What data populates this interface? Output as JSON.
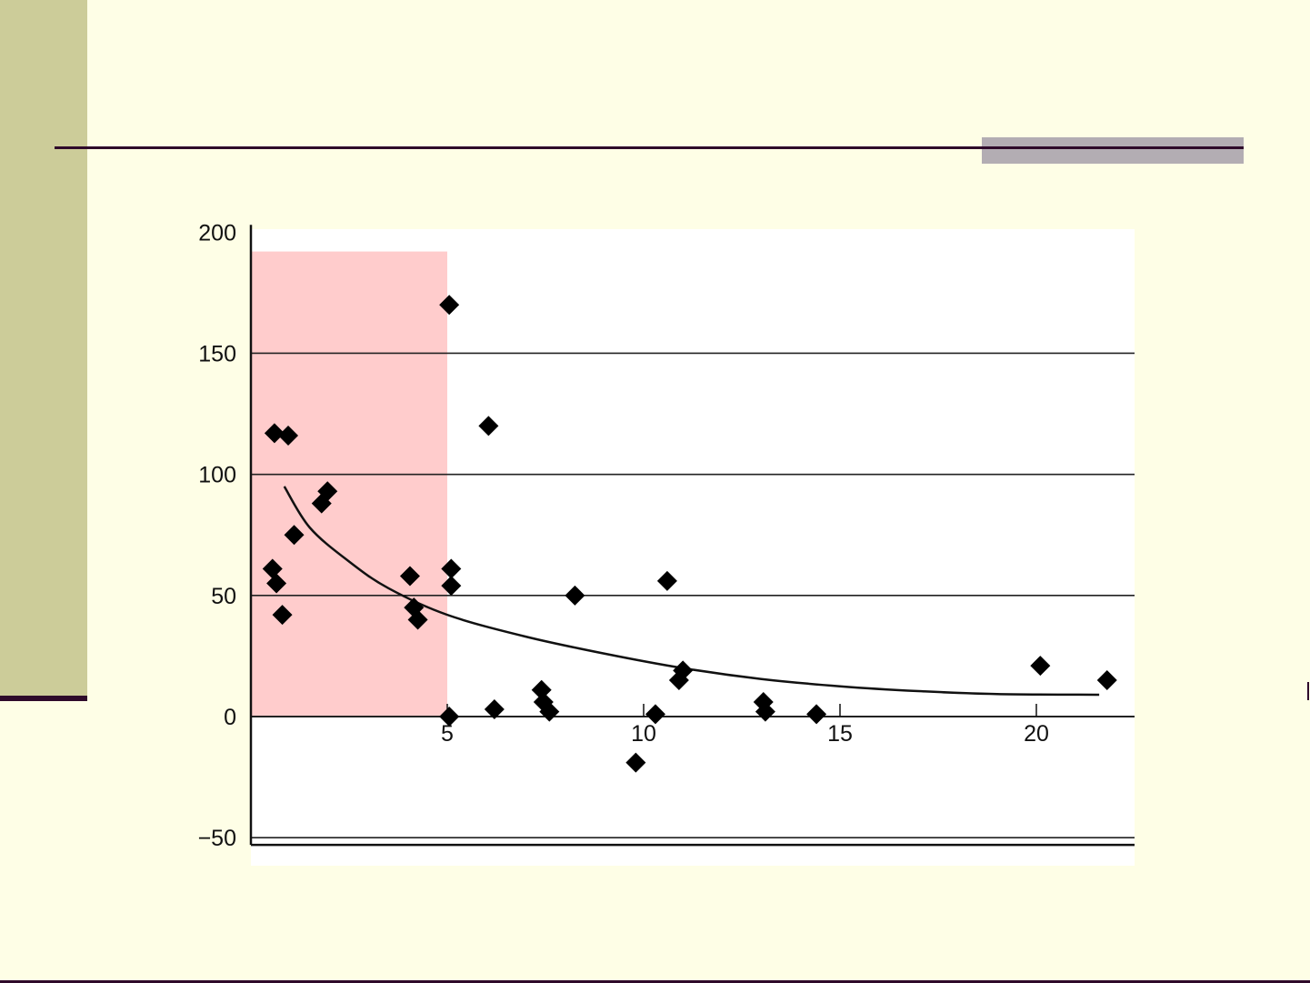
{
  "slide": {
    "colors": {
      "background": "#fefee6",
      "side_band": "#cccc99",
      "rule": "#2e0a2a",
      "accent_block": "#b3adb3"
    }
  },
  "chart_data": {
    "type": "scatter",
    "xlim": [
      0,
      22.5
    ],
    "ylim": [
      -53,
      203
    ],
    "x_ticks": [
      5,
      10,
      15,
      20
    ],
    "y_ticks": [
      200,
      150,
      100,
      50,
      0,
      -50
    ],
    "x_tick_labels": [
      "5",
      "10",
      "15",
      "20"
    ],
    "y_tick_labels": [
      "200",
      "150",
      "100",
      "50",
      "0",
      "−50"
    ],
    "grid": "horizontal",
    "shaded_region": {
      "x": [
        0,
        5
      ],
      "y": [
        0,
        192
      ],
      "color": "#ffcccc"
    },
    "marker": "diamond",
    "points": [
      {
        "x": 0.6,
        "y": 117
      },
      {
        "x": 0.95,
        "y": 116
      },
      {
        "x": 0.55,
        "y": 61
      },
      {
        "x": 0.65,
        "y": 55
      },
      {
        "x": 0.8,
        "y": 42
      },
      {
        "x": 1.1,
        "y": 75
      },
      {
        "x": 1.8,
        "y": 88
      },
      {
        "x": 1.95,
        "y": 93
      },
      {
        "x": 4.05,
        "y": 58
      },
      {
        "x": 4.15,
        "y": 45
      },
      {
        "x": 4.25,
        "y": 40
      },
      {
        "x": 5.05,
        "y": 170
      },
      {
        "x": 5.1,
        "y": 61
      },
      {
        "x": 5.1,
        "y": 54
      },
      {
        "x": 5.05,
        "y": 0
      },
      {
        "x": 6.05,
        "y": 120
      },
      {
        "x": 6.2,
        "y": 3
      },
      {
        "x": 7.4,
        "y": 11
      },
      {
        "x": 7.45,
        "y": 6
      },
      {
        "x": 7.6,
        "y": 2
      },
      {
        "x": 8.25,
        "y": 50
      },
      {
        "x": 9.8,
        "y": -19
      },
      {
        "x": 10.3,
        "y": 1
      },
      {
        "x": 10.6,
        "y": 56
      },
      {
        "x": 10.9,
        "y": 15
      },
      {
        "x": 11.0,
        "y": 19
      },
      {
        "x": 13.05,
        "y": 6
      },
      {
        "x": 13.1,
        "y": 2
      },
      {
        "x": 14.4,
        "y": 1
      },
      {
        "x": 20.1,
        "y": 21
      },
      {
        "x": 21.8,
        "y": 15
      }
    ],
    "trendline": {
      "type": "exponential",
      "points": [
        {
          "x": 0.85,
          "y": 95
        },
        {
          "x": 1.5,
          "y": 78
        },
        {
          "x": 2.5,
          "y": 64
        },
        {
          "x": 3.5,
          "y": 53
        },
        {
          "x": 5,
          "y": 42
        },
        {
          "x": 7,
          "y": 33
        },
        {
          "x": 9,
          "y": 26
        },
        {
          "x": 11,
          "y": 20
        },
        {
          "x": 13,
          "y": 15.5
        },
        {
          "x": 15,
          "y": 12.5
        },
        {
          "x": 17,
          "y": 10.5
        },
        {
          "x": 19,
          "y": 9.3
        },
        {
          "x": 21.6,
          "y": 9
        }
      ]
    }
  }
}
